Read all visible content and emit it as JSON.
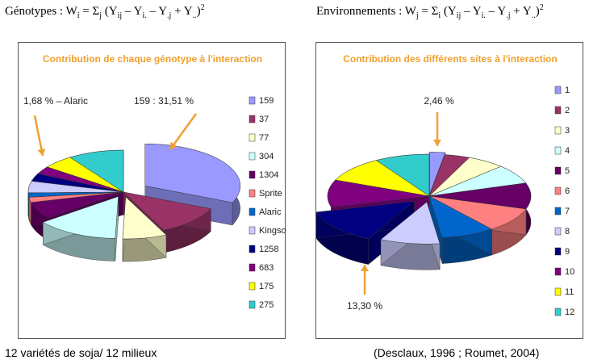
{
  "formulas": {
    "left": {
      "label": "Génotypes",
      "w": "W",
      "w_sub": "i",
      "sum_sub": "j",
      "terms": [
        "Y",
        "ij",
        "Y",
        "i.",
        "Y",
        ".j",
        "Y",
        ".."
      ]
    },
    "right": {
      "label": "Environnements",
      "w": "W",
      "w_sub": "j",
      "sum_sub": "i",
      "terms": [
        "Y",
        "ij",
        "Y",
        "i.",
        "Y",
        ".j",
        "Y",
        ".."
      ]
    }
  },
  "captions": {
    "left": "12 variétés de soja/ 12 milieux",
    "right": "(Desclaux, 1996 ; Roumet, 2004)"
  },
  "chart_data": [
    {
      "type": "pie",
      "title": "Contribution de chaque génotype à l'interaction",
      "legend_position": "right",
      "categories": [
        "159",
        "37",
        "77",
        "304",
        "1304",
        "Sprite",
        "Alaric",
        "Kingsoy",
        "1258",
        "683",
        "175",
        "275"
      ],
      "values": [
        31.51,
        11.5,
        7.5,
        14.0,
        6.5,
        2.0,
        1.68,
        4.5,
        3.0,
        3.0,
        5.3,
        9.5
      ],
      "colors": [
        "#9999ff",
        "#993366",
        "#ffffcc",
        "#ccffff",
        "#660066",
        "#ff8080",
        "#0066cc",
        "#ccccff",
        "#000080",
        "#800080",
        "#ffff00",
        "#33cccc"
      ],
      "annotations": [
        {
          "text": "1,68 % – Alaric",
          "category": "Alaric"
        },
        {
          "text": "159 : 31,51 %",
          "category": "159"
        }
      ],
      "title_color": "#f0a030"
    },
    {
      "type": "pie",
      "title": "Contribution des différents sites à l'interaction",
      "legend_position": "right",
      "categories": [
        "1",
        "2",
        "3",
        "4",
        "5",
        "6",
        "7",
        "8",
        "9",
        "10",
        "11",
        "12"
      ],
      "values": [
        2.46,
        4.0,
        6.0,
        7.5,
        10.0,
        9.5,
        8.5,
        9.5,
        13.3,
        10.5,
        10.0,
        8.74
      ],
      "colors": [
        "#9999ff",
        "#993366",
        "#ffffcc",
        "#ccffff",
        "#660066",
        "#ff8080",
        "#0066cc",
        "#ccccff",
        "#000080",
        "#800080",
        "#ffff00",
        "#33cccc"
      ],
      "annotations": [
        {
          "text": "2,46 %",
          "category": "1"
        },
        {
          "text": "13,30 %",
          "category": "9"
        }
      ],
      "title_color": "#f0a030"
    }
  ]
}
